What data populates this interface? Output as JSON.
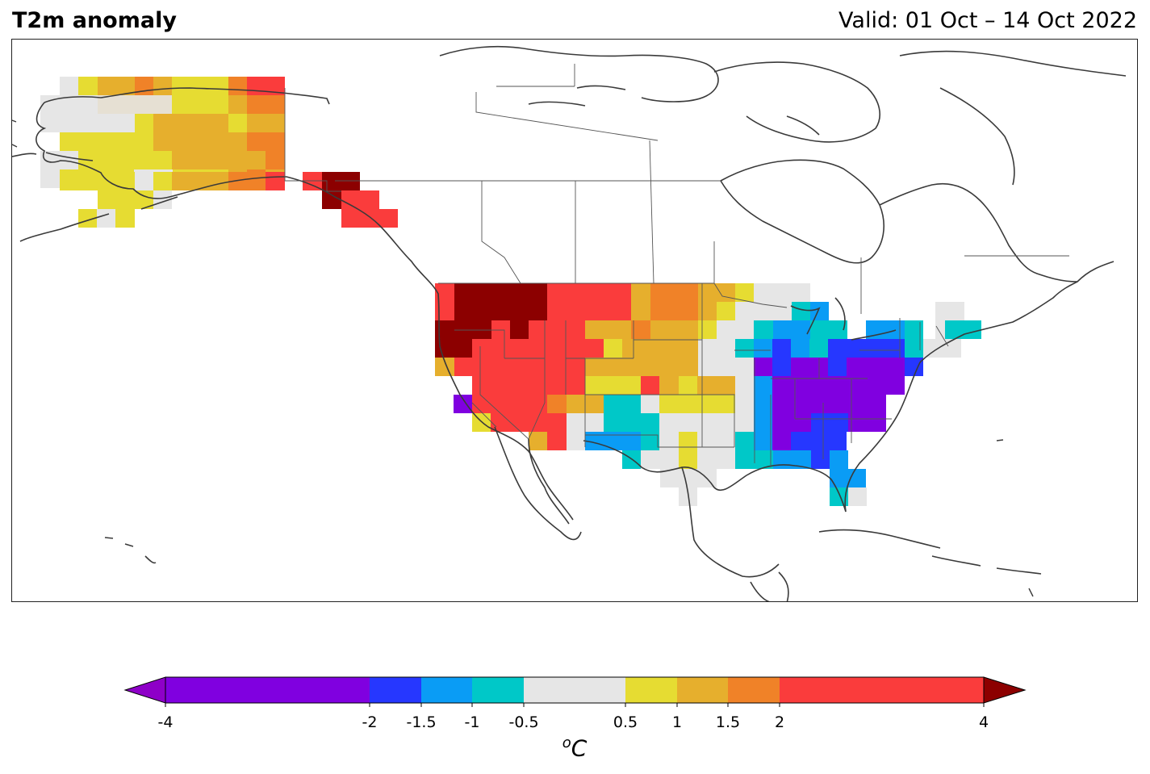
{
  "header": {
    "title": "T2m anomaly",
    "valid": "Valid: 01 Oct – 14 Oct 2022"
  },
  "legend": {
    "unit_sup": "o",
    "unit": "C",
    "ticks": [
      "-4",
      "-2",
      "-1.5",
      "-1",
      "-0.5",
      "0.5",
      "1",
      "1.5",
      "2",
      "4"
    ],
    "bins": [
      {
        "range": "< -4",
        "color": "#8e00c8"
      },
      {
        "range": "-4 to -2",
        "color": "#8000e0"
      },
      {
        "range": "-2 to -1.5",
        "color": "#2637ff"
      },
      {
        "range": "-1.5 to -1",
        "color": "#0a9cf5"
      },
      {
        "range": "-1 to -0.5",
        "color": "#00c8c8"
      },
      {
        "range": "-0.5 to 0.5",
        "color": "#e6e6e6"
      },
      {
        "range": "0.5 to 1",
        "color": "#e6dc32"
      },
      {
        "range": "1 to 1.5",
        "color": "#e6af2d"
      },
      {
        "range": "1.5 to 2",
        "color": "#f08228"
      },
      {
        "range": "2 to 4",
        "color": "#fa3c3c"
      },
      {
        "range": "> 4",
        "color": "#8c0000"
      }
    ]
  }
}
